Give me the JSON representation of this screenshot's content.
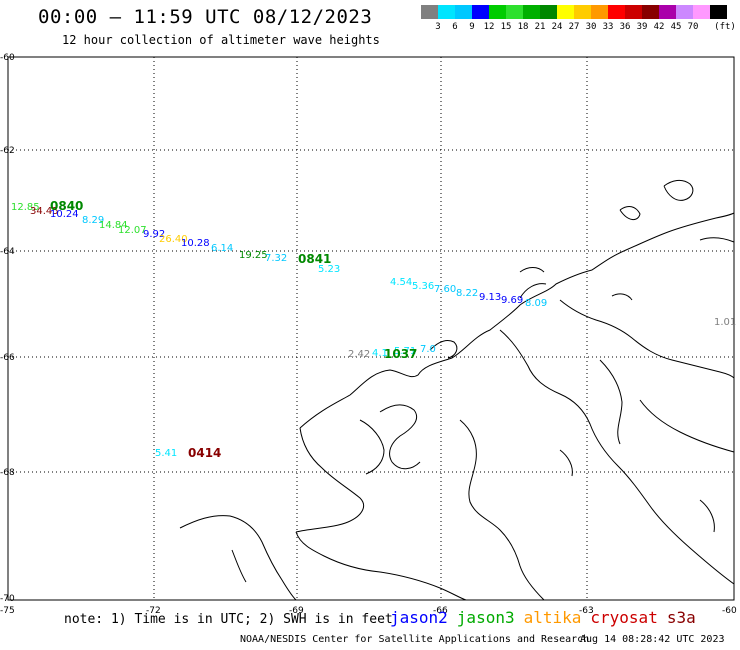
{
  "header": {
    "title": "00:00 – 11:59 UTC 08/12/2023",
    "subtitle": "12 hour collection of altimeter wave heights"
  },
  "color_scale": {
    "unit": "(ft)",
    "items": [
      {
        "label": "",
        "color": "#808080"
      },
      {
        "label": "3",
        "color": "#00e5ff"
      },
      {
        "label": "6",
        "color": "#00c8ff"
      },
      {
        "label": "9",
        "color": "#0000ff"
      },
      {
        "label": "12",
        "color": "#00cc00"
      },
      {
        "label": "15",
        "color": "#2ee02e"
      },
      {
        "label": "18",
        "color": "#00b000"
      },
      {
        "label": "21",
        "color": "#008800"
      },
      {
        "label": "24",
        "color": "#ffff00"
      },
      {
        "label": "27",
        "color": "#ffcc00"
      },
      {
        "label": "30",
        "color": "#ff9900"
      },
      {
        "label": "33",
        "color": "#ff0000"
      },
      {
        "label": "36",
        "color": "#cc0000"
      },
      {
        "label": "39",
        "color": "#880000"
      },
      {
        "label": "42",
        "color": "#aa00aa"
      },
      {
        "label": "45",
        "color": "#cc88ff"
      },
      {
        "label": "70",
        "color": "#ff99ff"
      },
      {
        "label": "",
        "color": "#000000"
      }
    ]
  },
  "axes": {
    "lat_labels": [
      "-60",
      "-62",
      "-64",
      "-66",
      "-68",
      "-70"
    ],
    "lon_labels": [
      "-75",
      "-72",
      "-69",
      "-66",
      "-63",
      "-60"
    ]
  },
  "observations": [
    {
      "label": "12.85",
      "color": "#2ee02e"
    },
    {
      "label": "34.45",
      "color": "#880000"
    },
    {
      "label": "10.24",
      "color": "#0000ff"
    },
    {
      "label": "8.29",
      "color": "#00c8ff"
    },
    {
      "label": "14.84",
      "color": "#2ee02e"
    },
    {
      "label": "12.07",
      "color": "#2ee02e"
    },
    {
      "label": "9.92",
      "color": "#0000ff"
    },
    {
      "label": "26.40",
      "color": "#ffcc00"
    },
    {
      "label": "10.28",
      "color": "#0000ff"
    },
    {
      "label": "6.14",
      "color": "#00c8ff"
    },
    {
      "label": "19.25",
      "color": "#008800"
    },
    {
      "label": "7.32",
      "color": "#00c8ff"
    },
    {
      "label": "5.23",
      "color": "#00e5ff"
    },
    {
      "label": "4.54",
      "color": "#00e5ff"
    },
    {
      "label": "5.36",
      "color": "#00e5ff"
    },
    {
      "label": "7.60",
      "color": "#00c8ff"
    },
    {
      "label": "8.22",
      "color": "#00c8ff"
    },
    {
      "label": "9.13",
      "color": "#0000ff"
    },
    {
      "label": "9.69",
      "color": "#0000ff"
    },
    {
      "label": "8.09",
      "color": "#00c8ff"
    },
    {
      "label": "1.01",
      "color": "#808080"
    },
    {
      "label": "2.42",
      "color": "#808080"
    },
    {
      "label": "4.1",
      "color": "#00e5ff"
    },
    {
      "label": "5.71",
      "color": "#00e5ff"
    },
    {
      "label": "7.0",
      "color": "#00c8ff"
    },
    {
      "label": "5.41",
      "color": "#00e5ff"
    }
  ],
  "pass_times": [
    {
      "label": "0840",
      "color": "#008800"
    },
    {
      "label": "0841",
      "color": "#008800"
    },
    {
      "label": "1037",
      "color": "#008800"
    },
    {
      "label": "0414",
      "color": "#880000"
    }
  ],
  "footer": {
    "note": "note: 1) Time is in UTC; 2) SWH is in feet",
    "satellites": [
      {
        "name": "jason2",
        "color": "#0000ff"
      },
      {
        "name": "jason3",
        "color": "#00aa00"
      },
      {
        "name": "altika",
        "color": "#ff9900"
      },
      {
        "name": "cryosat",
        "color": "#cc0000"
      },
      {
        "name": "s3a",
        "color": "#880000"
      }
    ],
    "credit": "NOAA/NESDIS Center for Satellite Applications and Research",
    "timestamp": "Aug 14 08:28:42 UTC 2023"
  }
}
